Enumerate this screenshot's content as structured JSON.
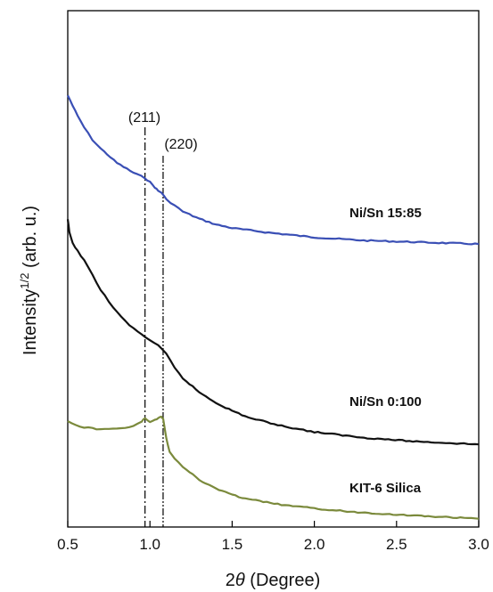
{
  "chart_data": {
    "type": "line",
    "xlabel_prefix": "2",
    "xlabel_symbol": "θ",
    "xlabel_suffix": " (Degree)",
    "ylabel_main": "Intensity",
    "ylabel_sup": "1/2",
    "ylabel_tail": " (arb. u.)",
    "xlim": [
      0.5,
      3.0
    ],
    "ylim": [
      0,
      100
    ],
    "x_ticks": [
      0.5,
      1.0,
      1.5,
      2.0,
      2.5,
      3.0
    ],
    "x_tick_labels": [
      "0.5",
      "1.0",
      "1.5",
      "2.0",
      "2.5",
      "3.0"
    ],
    "y_ticks_visible": false,
    "grid": false,
    "series": [
      {
        "name": "Ni/Sn 15:85",
        "color": "#3a4fb5",
        "x": [
          0.5,
          0.53,
          0.56,
          0.6,
          0.65,
          0.7,
          0.8,
          0.9,
          0.97,
          1.0,
          1.03,
          1.05,
          1.07,
          1.1,
          1.15,
          1.2,
          1.3,
          1.4,
          1.5,
          1.7,
          2.0,
          2.3,
          2.5,
          2.8,
          3.0
        ],
        "y": [
          83.6,
          81.6,
          79.6,
          77.4,
          75.0,
          73.3,
          70.5,
          68.6,
          67.6,
          66.8,
          65.8,
          65.1,
          64.8,
          63.4,
          62.3,
          61.1,
          59.7,
          58.6,
          57.9,
          57.1,
          56.1,
          55.5,
          55.3,
          55.0,
          54.8
        ]
      },
      {
        "name": "Ni/Sn 0:100",
        "color": "#111111",
        "x": [
          0.5,
          0.51,
          0.53,
          0.56,
          0.6,
          0.65,
          0.7,
          0.75,
          0.8,
          0.85,
          0.9,
          0.95,
          1.0,
          1.05,
          1.1,
          1.15,
          1.2,
          1.3,
          1.4,
          1.5,
          1.6,
          1.8,
          2.0,
          2.3,
          2.6,
          2.8,
          3.0
        ],
        "y": [
          59.6,
          57.1,
          54.9,
          53.5,
          51.6,
          48.8,
          46.0,
          43.6,
          41.6,
          39.9,
          38.4,
          37.3,
          36.2,
          35.1,
          33.5,
          30.8,
          28.8,
          26.1,
          24.1,
          22.5,
          21.2,
          19.6,
          18.4,
          17.3,
          16.6,
          16.3,
          16.0
        ]
      },
      {
        "name": "KIT-6 Silica",
        "color": "#7b8a3c",
        "x": [
          0.5,
          0.55,
          0.6,
          0.65,
          0.7,
          0.75,
          0.8,
          0.85,
          0.9,
          0.95,
          0.97,
          1.0,
          1.03,
          1.05,
          1.07,
          1.08,
          1.1,
          1.12,
          1.15,
          1.2,
          1.3,
          1.4,
          1.5,
          1.6,
          1.8,
          2.0,
          2.2,
          2.5,
          2.8,
          3.0
        ],
        "y": [
          20.5,
          19.7,
          19.3,
          19.1,
          18.9,
          19.1,
          19.0,
          19.3,
          19.5,
          20.4,
          21.1,
          20.4,
          20.7,
          21.1,
          21.3,
          21.1,
          17.1,
          14.6,
          13.3,
          11.7,
          9.1,
          7.5,
          6.2,
          5.4,
          4.3,
          3.6,
          3.0,
          2.4,
          1.9,
          1.6
        ]
      }
    ],
    "annotations": [
      {
        "label": "(211)",
        "x": 0.97,
        "style": "dash-dot"
      },
      {
        "label": "(220)",
        "x": 1.08,
        "style": "dash-dot-dot"
      }
    ]
  }
}
